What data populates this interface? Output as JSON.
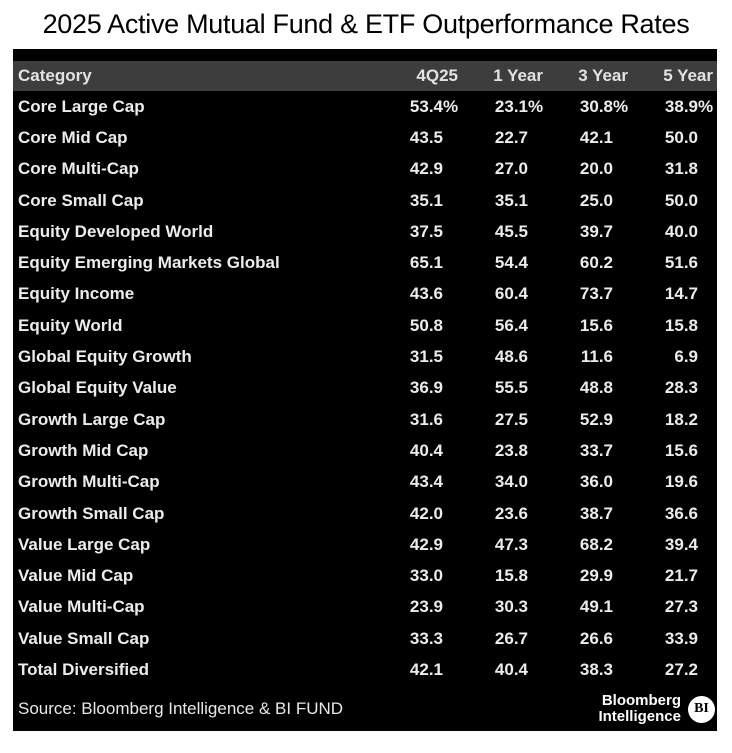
{
  "title": "2025 Active Mutual Fund & ETF Outperformance Rates",
  "colors": {
    "table_bg": "#000000",
    "header_bg": "#3d3d3d",
    "row_text": "#ececec",
    "title_text": "#000000"
  },
  "footer": {
    "source": "Source: Bloomberg Intelligence & BI FUND",
    "logo_line1": "Bloomberg",
    "logo_line2": "Intelligence",
    "logo_badge": "BI"
  },
  "chart_data": {
    "type": "table",
    "title": "2025 Active Mutual Fund & ETF Outperformance Rates",
    "columns": [
      "Category",
      "4Q25",
      "1 Year",
      "3 Year",
      "5 Year"
    ],
    "unit": "percent",
    "rows": [
      [
        "Core Large Cap",
        "53.4%",
        "23.1%",
        "30.8%",
        "38.9%"
      ],
      [
        "Core Mid Cap",
        "43.5",
        "22.7",
        "42.1",
        "50.0"
      ],
      [
        "Core Multi-Cap",
        "42.9",
        "27.0",
        "20.0",
        "31.8"
      ],
      [
        "Core Small Cap",
        "35.1",
        "35.1",
        "25.0",
        "50.0"
      ],
      [
        "Equity Developed World",
        "37.5",
        "45.5",
        "39.7",
        "40.0"
      ],
      [
        "Equity Emerging Markets Global",
        "65.1",
        "54.4",
        "60.2",
        "51.6"
      ],
      [
        "Equity Income",
        "43.6",
        "60.4",
        "73.7",
        "14.7"
      ],
      [
        "Equity World",
        "50.8",
        "56.4",
        "15.6",
        "15.8"
      ],
      [
        "Global Equity Growth",
        "31.5",
        "48.6",
        "11.6",
        "6.9"
      ],
      [
        "Global Equity Value",
        "36.9",
        "55.5",
        "48.8",
        "28.3"
      ],
      [
        "Growth Large Cap",
        "31.6",
        "27.5",
        "52.9",
        "18.2"
      ],
      [
        "Growth Mid Cap",
        "40.4",
        "23.8",
        "33.7",
        "15.6"
      ],
      [
        "Growth Multi-Cap",
        "43.4",
        "34.0",
        "36.0",
        "19.6"
      ],
      [
        "Growth Small Cap",
        "42.0",
        "23.6",
        "38.7",
        "36.6"
      ],
      [
        "Value Large Cap",
        "42.9",
        "47.3",
        "68.2",
        "39.4"
      ],
      [
        "Value Mid Cap",
        "33.0",
        "15.8",
        "29.9",
        "21.7"
      ],
      [
        "Value Multi-Cap",
        "23.9",
        "30.3",
        "49.1",
        "27.3"
      ],
      [
        "Value Small Cap",
        "33.3",
        "26.7",
        "26.6",
        "33.9"
      ],
      [
        "Total Diversified",
        "42.1",
        "40.4",
        "38.3",
        "27.2"
      ]
    ]
  }
}
